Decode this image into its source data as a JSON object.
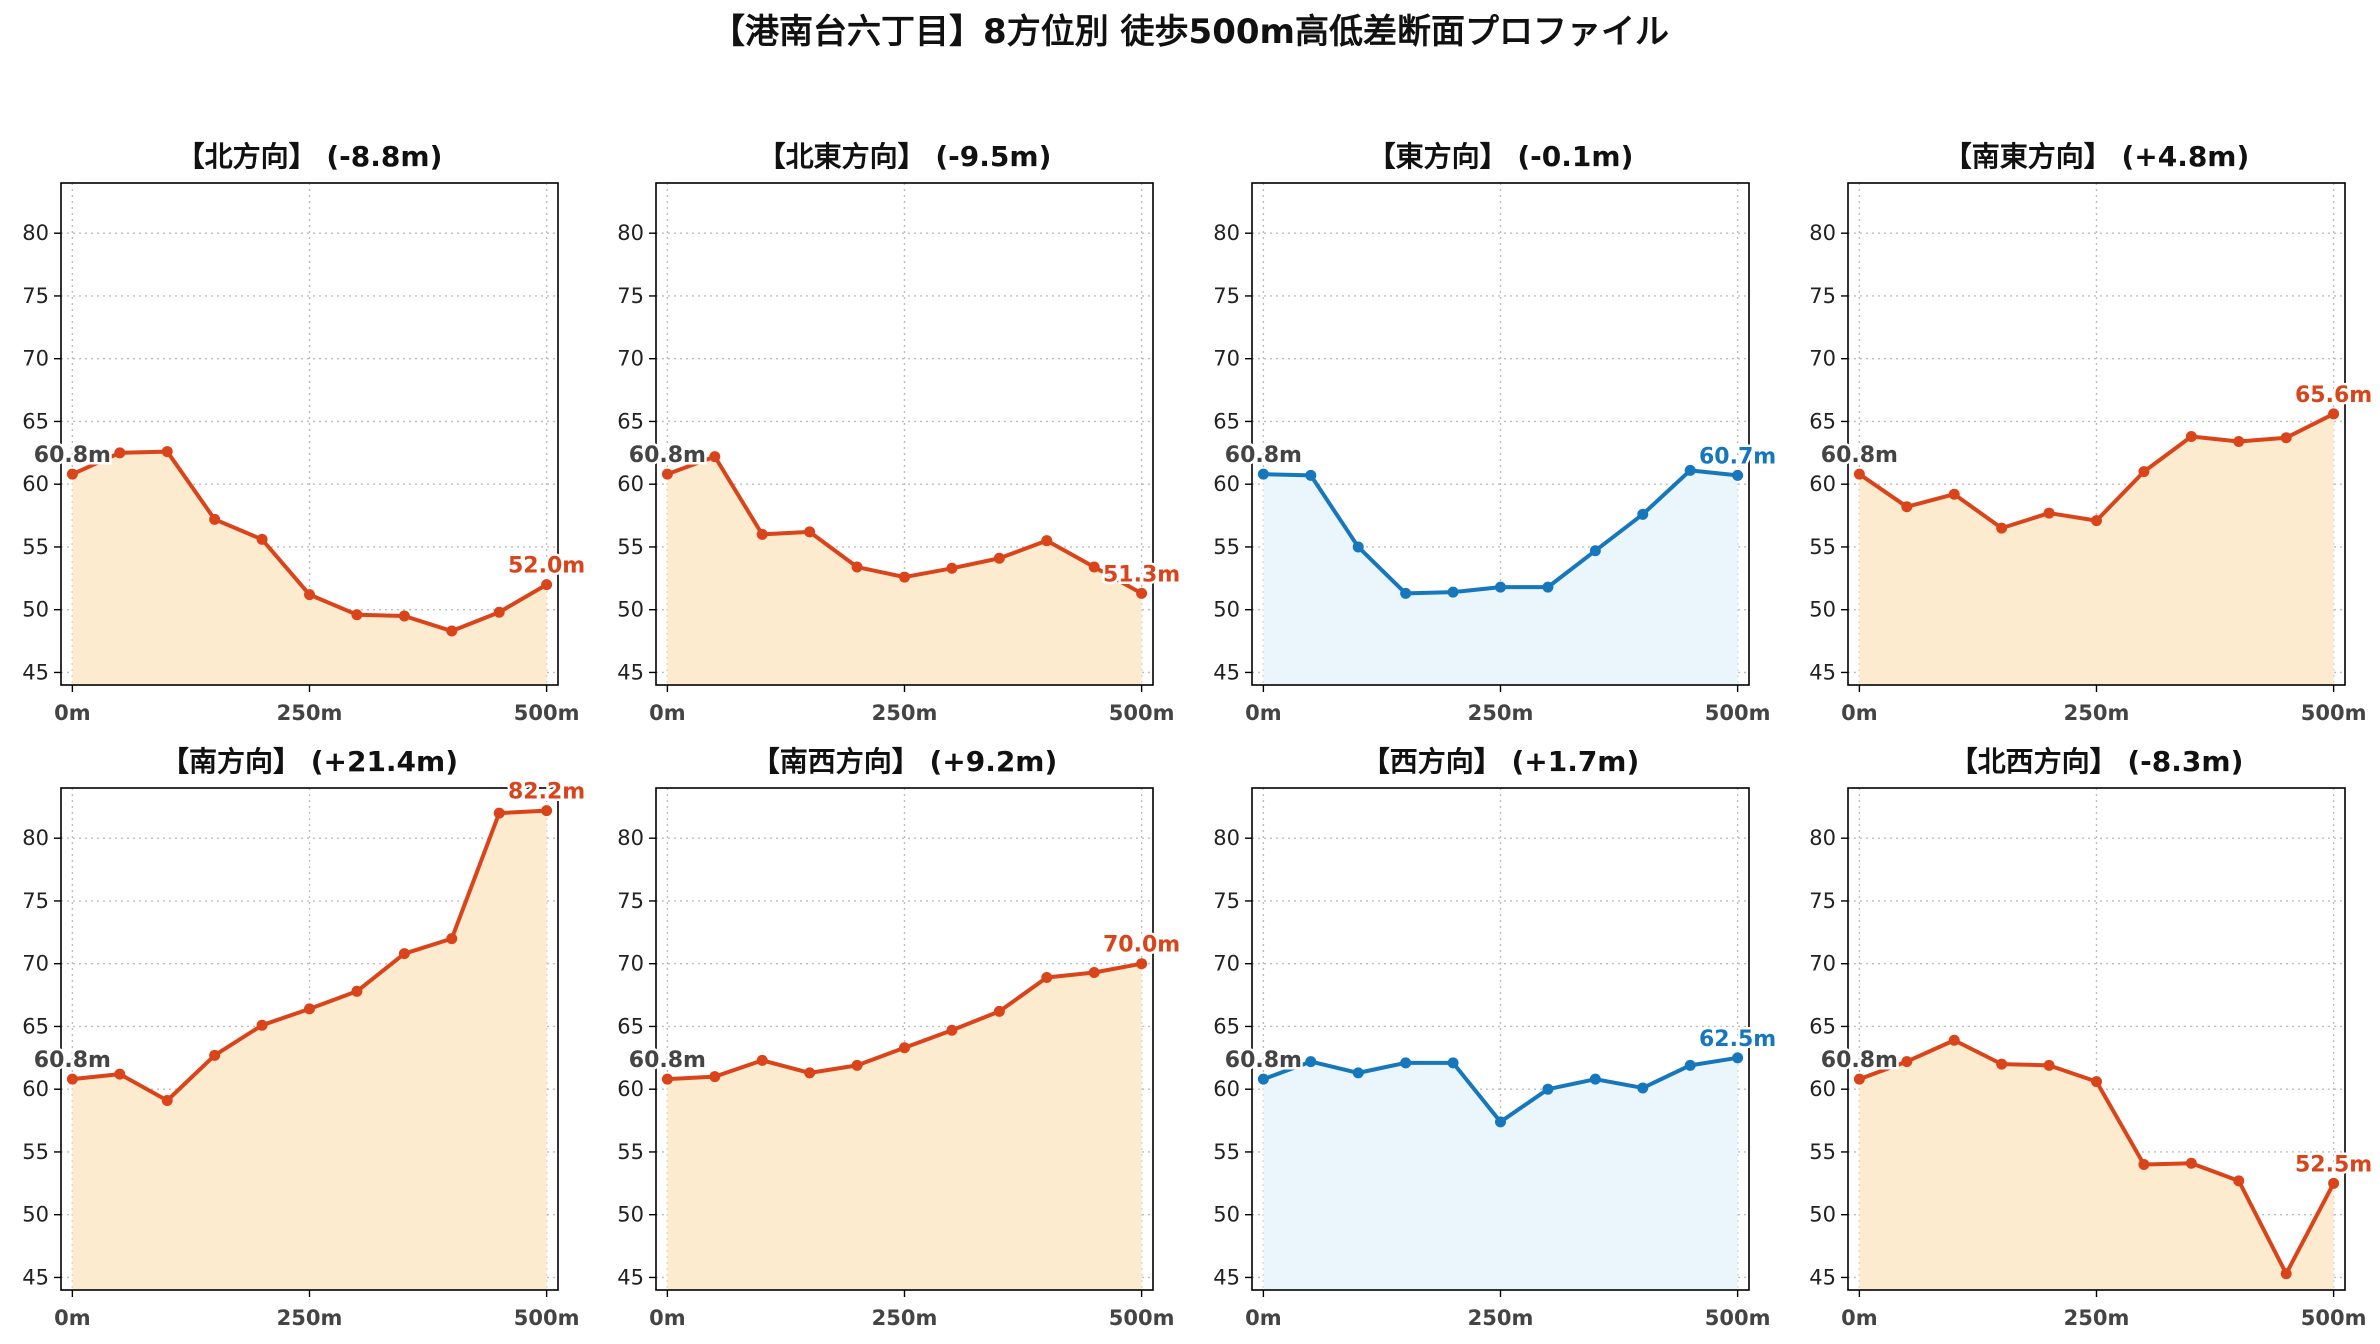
{
  "title": "【港南台六丁目】8方位別 徒歩500m高低差断面プロファイル",
  "colors": {
    "descent": "#D9441B",
    "descent_fill": "#FDEBD0",
    "flat": "#1777BC",
    "flat_fill": "#EAF6FB",
    "start_label": "#444444"
  },
  "chart_data": [
    {
      "type": "area",
      "title": "【北方向】 (-8.8m)",
      "x": [
        0,
        50,
        100,
        150,
        200,
        250,
        300,
        350,
        400,
        450,
        500
      ],
      "values": [
        60.8,
        62.5,
        62.6,
        57.2,
        55.6,
        51.2,
        49.6,
        49.5,
        48.3,
        49.8,
        52.0
      ],
      "start_label": "60.8m",
      "end_label": "52.0m",
      "color_key": "descent",
      "x_ticks": [
        "0m",
        "250m",
        "500m"
      ],
      "y_ticks": [
        45,
        50,
        55,
        60,
        65,
        70,
        75,
        80
      ],
      "ylim": [
        44,
        84
      ],
      "xlim": [
        -12,
        512
      ],
      "grid": true
    },
    {
      "type": "area",
      "title": "【北東方向】 (-9.5m)",
      "x": [
        0,
        50,
        100,
        150,
        200,
        250,
        300,
        350,
        400,
        450,
        500
      ],
      "values": [
        60.8,
        62.2,
        56.0,
        56.2,
        53.4,
        52.6,
        53.3,
        54.1,
        55.5,
        53.4,
        51.3
      ],
      "start_label": "60.8m",
      "end_label": "51.3m",
      "color_key": "descent",
      "x_ticks": [
        "0m",
        "250m",
        "500m"
      ],
      "y_ticks": [
        45,
        50,
        55,
        60,
        65,
        70,
        75,
        80
      ],
      "ylim": [
        44,
        84
      ],
      "xlim": [
        -12,
        512
      ],
      "grid": true
    },
    {
      "type": "area",
      "title": "【東方向】 (-0.1m)",
      "x": [
        0,
        50,
        100,
        150,
        200,
        250,
        300,
        350,
        400,
        450,
        500
      ],
      "values": [
        60.8,
        60.7,
        55.0,
        51.3,
        51.4,
        51.8,
        51.8,
        54.7,
        57.6,
        61.1,
        60.7
      ],
      "start_label": "60.8m",
      "end_label": "60.7m",
      "color_key": "flat",
      "x_ticks": [
        "0m",
        "250m",
        "500m"
      ],
      "y_ticks": [
        45,
        50,
        55,
        60,
        65,
        70,
        75,
        80
      ],
      "ylim": [
        44,
        84
      ],
      "xlim": [
        -12,
        512
      ],
      "grid": true
    },
    {
      "type": "area",
      "title": "【南東方向】 (+4.8m)",
      "x": [
        0,
        50,
        100,
        150,
        200,
        250,
        300,
        350,
        400,
        450,
        500
      ],
      "values": [
        60.8,
        58.2,
        59.2,
        56.5,
        57.7,
        57.1,
        61.0,
        63.8,
        63.4,
        63.7,
        65.6
      ],
      "start_label": "60.8m",
      "end_label": "65.6m",
      "color_key": "descent",
      "x_ticks": [
        "0m",
        "250m",
        "500m"
      ],
      "y_ticks": [
        45,
        50,
        55,
        60,
        65,
        70,
        75,
        80
      ],
      "ylim": [
        44,
        84
      ],
      "xlim": [
        -12,
        512
      ],
      "grid": true
    },
    {
      "type": "area",
      "title": "【南方向】 (+21.4m)",
      "x": [
        0,
        50,
        100,
        150,
        200,
        250,
        300,
        350,
        400,
        450,
        500
      ],
      "values": [
        60.8,
        61.2,
        59.1,
        62.7,
        65.1,
        66.4,
        67.8,
        70.8,
        72.0,
        82.0,
        82.2
      ],
      "start_label": "60.8m",
      "end_label": "82.2m",
      "color_key": "descent",
      "x_ticks": [
        "0m",
        "250m",
        "500m"
      ],
      "y_ticks": [
        45,
        50,
        55,
        60,
        65,
        70,
        75,
        80
      ],
      "ylim": [
        44,
        84
      ],
      "xlim": [
        -12,
        512
      ],
      "grid": true
    },
    {
      "type": "area",
      "title": "【南西方向】 (+9.2m)",
      "x": [
        0,
        50,
        100,
        150,
        200,
        250,
        300,
        350,
        400,
        450,
        500
      ],
      "values": [
        60.8,
        61.0,
        62.3,
        61.3,
        61.9,
        63.3,
        64.7,
        66.2,
        68.9,
        69.3,
        70.0
      ],
      "start_label": "60.8m",
      "end_label": "70.0m",
      "color_key": "descent",
      "x_ticks": [
        "0m",
        "250m",
        "500m"
      ],
      "y_ticks": [
        45,
        50,
        55,
        60,
        65,
        70,
        75,
        80
      ],
      "ylim": [
        44,
        84
      ],
      "xlim": [
        -12,
        512
      ],
      "grid": true
    },
    {
      "type": "area",
      "title": "【西方向】 (+1.7m)",
      "x": [
        0,
        50,
        100,
        150,
        200,
        250,
        300,
        350,
        400,
        450,
        500
      ],
      "values": [
        60.8,
        62.2,
        61.3,
        62.1,
        62.1,
        57.4,
        60.0,
        60.8,
        60.1,
        61.9,
        62.5
      ],
      "start_label": "60.8m",
      "end_label": "62.5m",
      "color_key": "flat",
      "x_ticks": [
        "0m",
        "250m",
        "500m"
      ],
      "y_ticks": [
        45,
        50,
        55,
        60,
        65,
        70,
        75,
        80
      ],
      "ylim": [
        44,
        84
      ],
      "xlim": [
        -12,
        512
      ],
      "grid": true
    },
    {
      "type": "area",
      "title": "【北西方向】 (-8.3m)",
      "x": [
        0,
        50,
        100,
        150,
        200,
        250,
        300,
        350,
        400,
        450,
        500
      ],
      "values": [
        60.8,
        62.2,
        63.9,
        62.0,
        61.9,
        60.6,
        54.0,
        54.1,
        52.7,
        45.3,
        52.5
      ],
      "start_label": "60.8m",
      "end_label": "52.5m",
      "color_key": "descent",
      "x_ticks": [
        "0m",
        "250m",
        "500m"
      ],
      "y_ticks": [
        45,
        50,
        55,
        60,
        65,
        70,
        75,
        80
      ],
      "ylim": [
        44,
        84
      ],
      "xlim": [
        -12,
        512
      ],
      "grid": true
    }
  ]
}
